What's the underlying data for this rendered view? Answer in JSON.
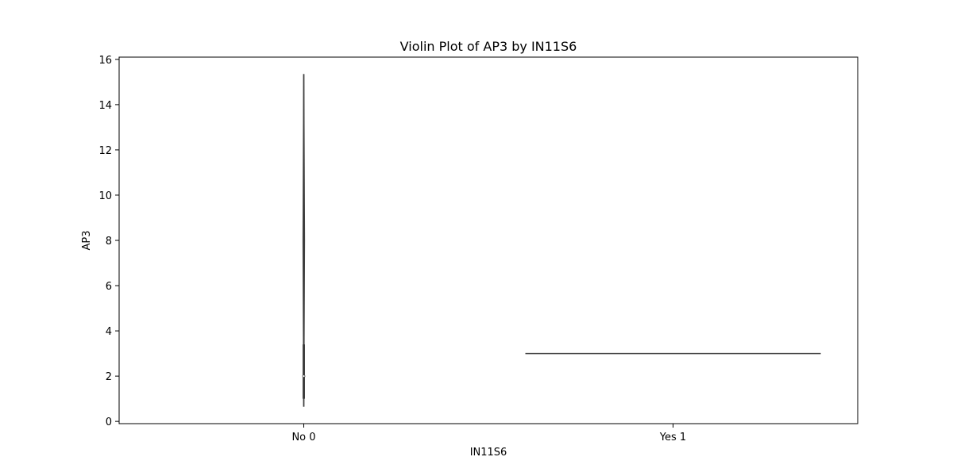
{
  "chart_data": {
    "type": "violin",
    "title": "Violin Plot of AP3 by IN11S6",
    "xlabel": "IN11S6",
    "ylabel": "AP3",
    "categories": [
      "No 0",
      "Yes 1"
    ],
    "ylim": [
      -0.1,
      16.1
    ],
    "yticks": [
      0,
      2,
      4,
      6,
      8,
      10,
      12,
      14,
      16
    ],
    "grid": false,
    "series": [
      {
        "category": "No 0",
        "min": 0.65,
        "max": 15.35,
        "q1": 1.0,
        "median": 2.0,
        "q3": 3.4,
        "max_half_width_fraction": 0.005
      },
      {
        "category": "Yes 1",
        "min": 3.0,
        "max": 3.0,
        "median": 3.0,
        "max_half_width_fraction": 0.8
      }
    ],
    "colors": {
      "stroke": "#3f3f3f",
      "axes": "#000000"
    }
  }
}
